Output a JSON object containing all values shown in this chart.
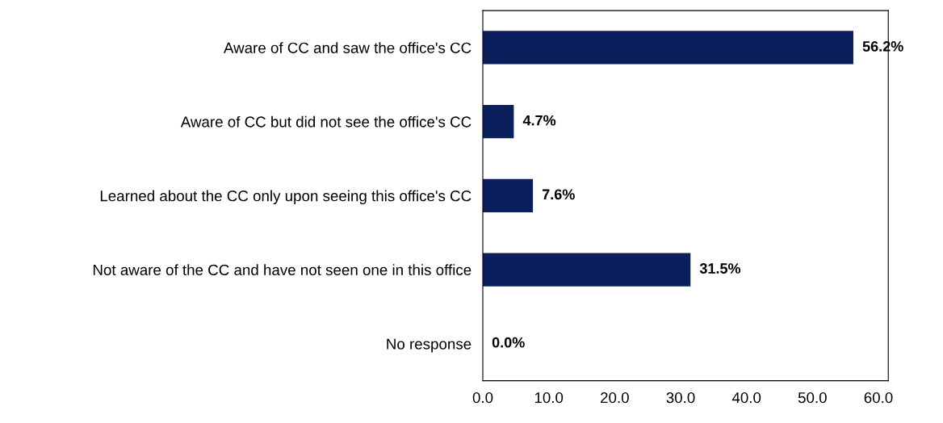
{
  "chart_data": {
    "type": "bar",
    "orientation": "horizontal",
    "categories": [
      "Aware of CC and saw the office's CC",
      "Aware of CC but did not see the office's CC",
      "Learned about the CC only upon seeing this office's CC",
      "Not aware of the CC and have not seen one in this office",
      "No response"
    ],
    "values": [
      56.2,
      4.7,
      7.6,
      31.5,
      0.0
    ],
    "value_labels": [
      "56.2%",
      "4.7%",
      "7.6%",
      "31.5%",
      "0.0%"
    ],
    "color": "#0b1f5c",
    "xlim": [
      0,
      61.5
    ],
    "xticks": [
      {
        "value": 0,
        "label": "0.0"
      },
      {
        "value": 10,
        "label": "10.0"
      },
      {
        "value": 20,
        "label": "20.0"
      },
      {
        "value": 30,
        "label": "30.0"
      },
      {
        "value": 40,
        "label": "40.0"
      },
      {
        "value": 50,
        "label": "50.0"
      },
      {
        "value": 60,
        "label": "60.0"
      }
    ],
    "grid": false,
    "legend": false
  }
}
